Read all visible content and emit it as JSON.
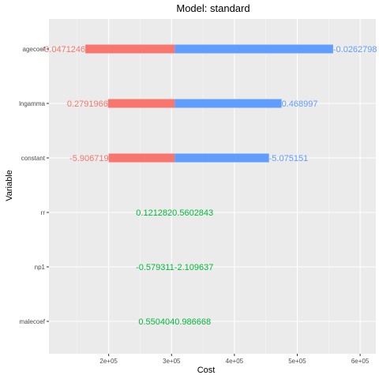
{
  "chart_data": {
    "type": "bar",
    "title": "Model: standard",
    "xlabel": "Cost",
    "ylabel": "Variable",
    "xlim": [
      105000,
      625000
    ],
    "x_ticks": [
      {
        "value": 200000,
        "label": "2e+05"
      },
      {
        "value": 300000,
        "label": "3e+05"
      },
      {
        "value": 400000,
        "label": "4e+05"
      },
      {
        "value": 500000,
        "label": "5e+05"
      },
      {
        "value": 600000,
        "label": "6e+05"
      }
    ],
    "base": 305000,
    "categories": [
      "agecoef",
      "lngamma",
      "constant",
      "rr",
      "np1",
      "malecoef"
    ],
    "colors": {
      "low": "#F8766D",
      "high": "#619CFF",
      "neutral": "#00BA38"
    },
    "rows": [
      {
        "variable": "agecoef",
        "low_cost": 163000,
        "high_cost": 557000,
        "low_label": "-0.0471246",
        "high_label": "-0.0262798",
        "center_label": ""
      },
      {
        "variable": "lngamma",
        "low_cost": 199000,
        "high_cost": 475000,
        "low_label": "0.2791966",
        "high_label": "0.468997",
        "center_label": ""
      },
      {
        "variable": "constant",
        "low_cost": 200000,
        "high_cost": 455000,
        "low_label": "-5.906719",
        "high_label": "-5.075151",
        "center_label": ""
      },
      {
        "variable": "rr",
        "low_cost": 305000,
        "high_cost": 305000,
        "low_label": "",
        "high_label": "",
        "center_label": "0.1212820.5602843"
      },
      {
        "variable": "np1",
        "low_cost": 305000,
        "high_cost": 305000,
        "low_label": "",
        "high_label": "",
        "center_label": "-0.579311-2.109637"
      },
      {
        "variable": "malecoef",
        "low_cost": 305000,
        "high_cost": 305000,
        "low_label": "",
        "high_label": "",
        "center_label": "0.5504040.986668"
      }
    ]
  }
}
